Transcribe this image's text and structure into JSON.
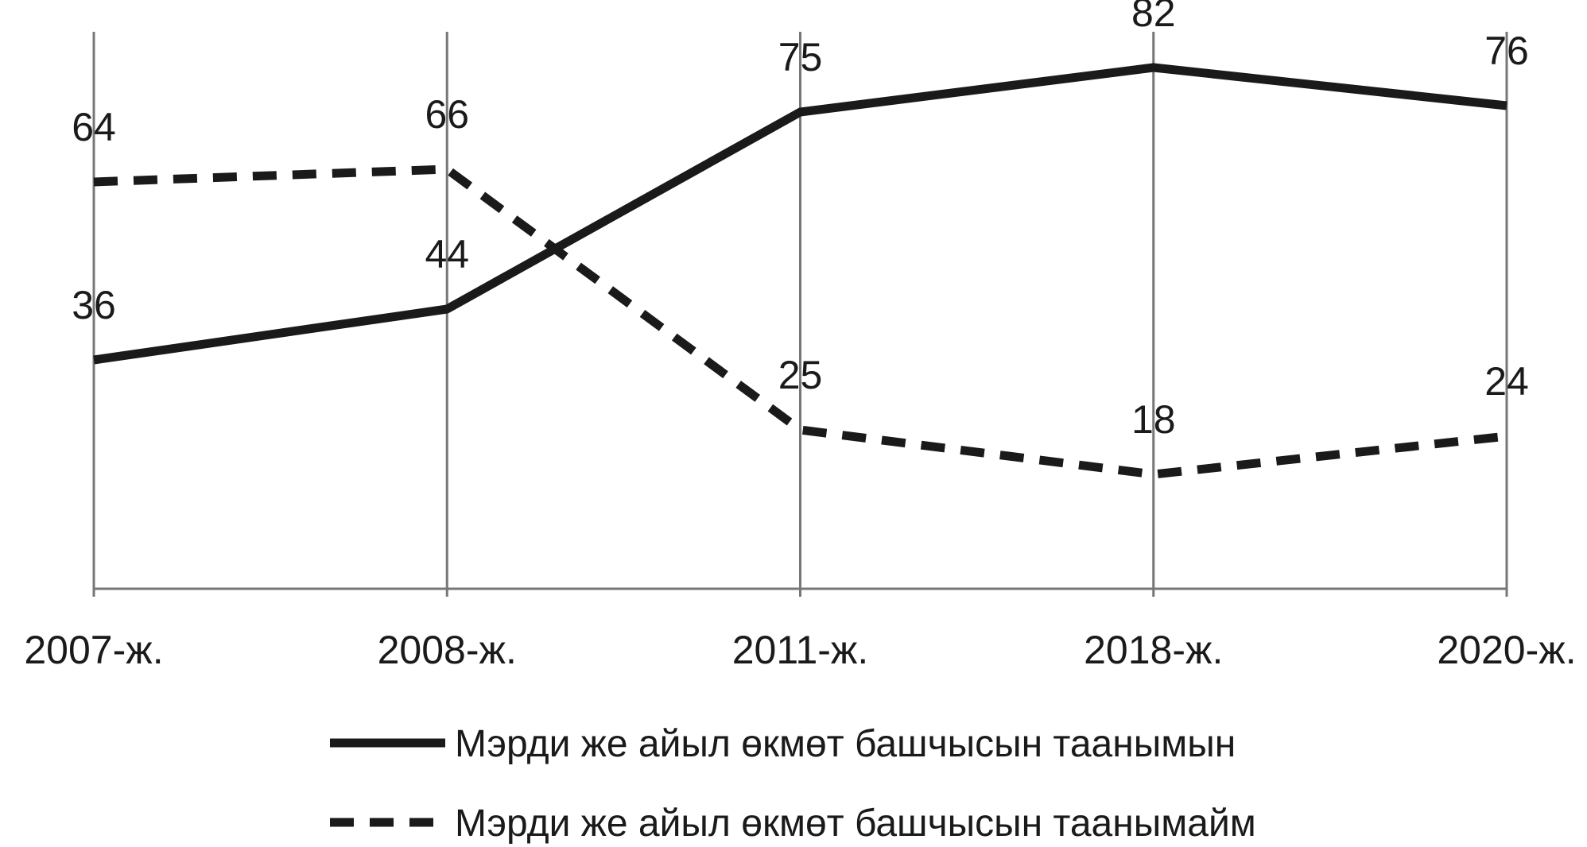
{
  "chart_data": {
    "type": "line",
    "categories": [
      "2007-ж.",
      "2008-ж.",
      "2011-ж.",
      "2018-ж.",
      "2020-ж."
    ],
    "series": [
      {
        "name": "Мэрди же айыл өкмөт башчысын таанымын",
        "values": [
          36,
          44,
          75,
          82,
          76
        ],
        "style": "solid",
        "color": "#1a1a1a"
      },
      {
        "name": "Мэрди же айыл өкмөт башчысын таанымайм",
        "values": [
          64,
          66,
          25,
          18,
          24
        ],
        "style": "dashed",
        "color": "#1a1a1a"
      }
    ],
    "ylim": [
      0,
      90
    ],
    "grid": "vertical",
    "legend_position": "bottom",
    "title": "",
    "xlabel": "",
    "ylabel": ""
  }
}
